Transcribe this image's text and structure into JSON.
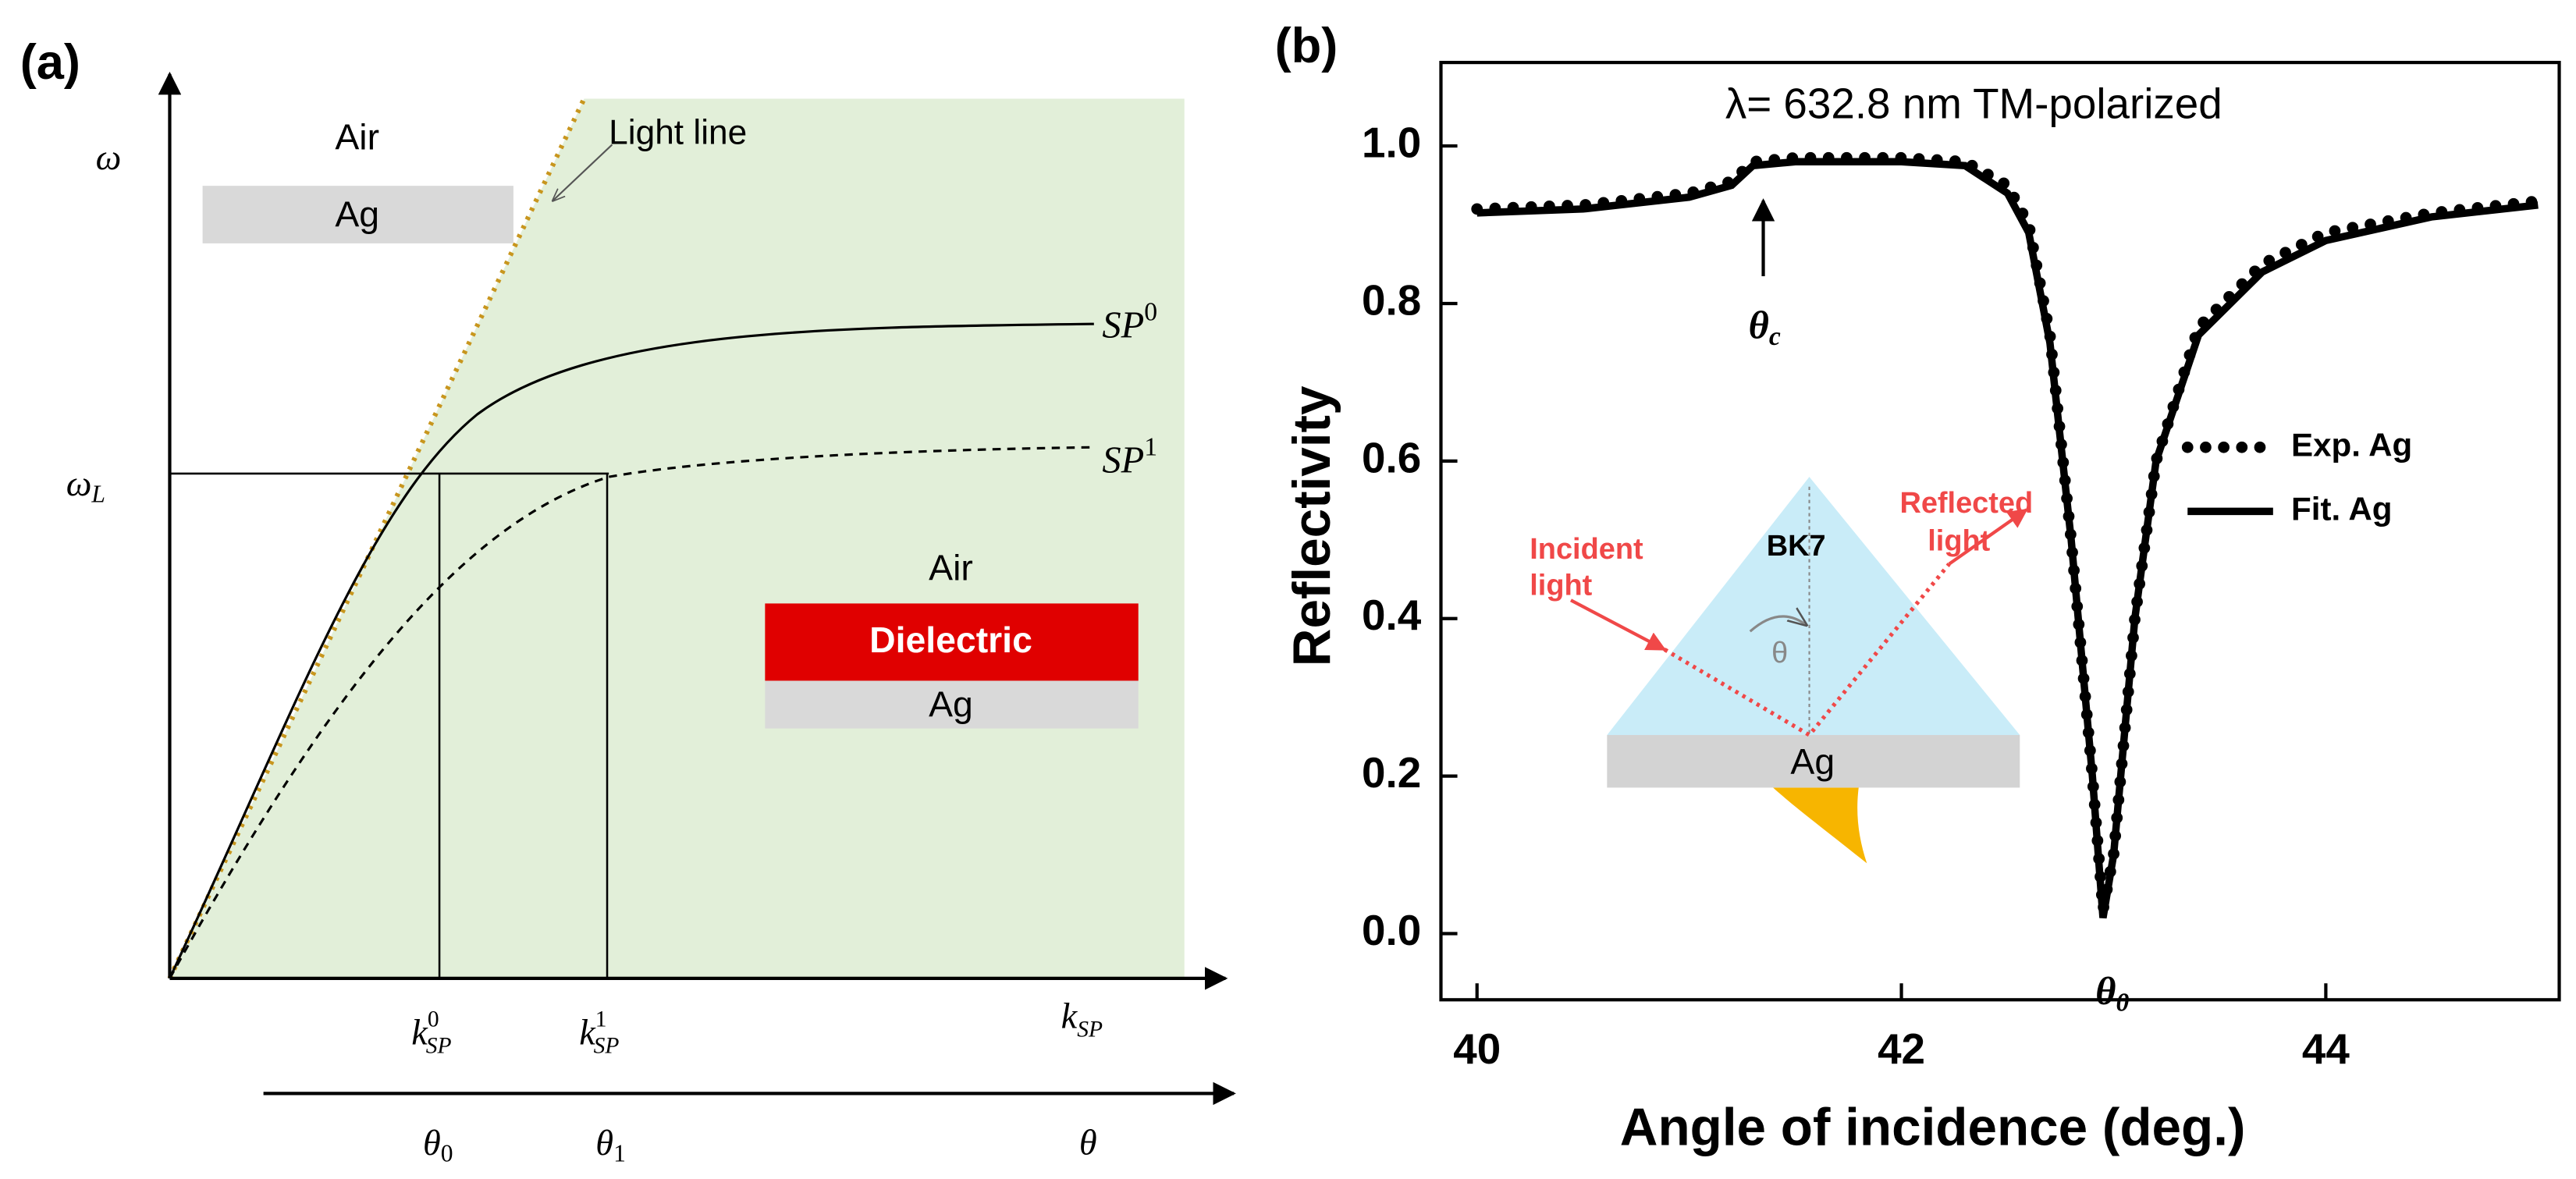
{
  "panel_a": {
    "label": "(a)",
    "y_axis": "ω",
    "top_medium": "Air",
    "top_metal": "Ag",
    "light_line": "Light line",
    "sp0": {
      "base": "SP",
      "sup": "0"
    },
    "sp1": {
      "base": "SP",
      "sup": "1"
    },
    "omega_l": {
      "base": "ω",
      "sub": "L"
    },
    "stack_top": "Air",
    "stack_middle": "Dielectric",
    "stack_bottom": "Ag",
    "k0": {
      "base": "k",
      "sub": "SP",
      "sup": "0"
    },
    "k1": {
      "base": "k",
      "sub": "SP",
      "sup": "1"
    },
    "k_axis": {
      "base": "k",
      "sub": "SP"
    },
    "theta0": {
      "base": "θ",
      "sub": "0"
    },
    "theta1": {
      "base": "θ",
      "sub": "1"
    },
    "theta_axis": "θ"
  },
  "chart_data": {
    "type": "line",
    "panel_label": "(b)",
    "title": "λ= 632.8 nm TM-polarized",
    "x_label": "Angle of incidence (deg.)",
    "y_label": "Reflectivity",
    "x": [
      40,
      40.5,
      41,
      41.2,
      41.3,
      41.5,
      42,
      42.3,
      42.5,
      42.6,
      42.7,
      42.8,
      42.9,
      42.95,
      43,
      43.1,
      43.2,
      43.4,
      43.7,
      44,
      44.5,
      45
    ],
    "series": [
      {
        "name": "Exp. Ag",
        "color": "#000000",
        "style": "dotted",
        "values": [
          0.92,
          0.925,
          0.94,
          0.955,
          0.98,
          0.985,
          0.985,
          0.98,
          0.95,
          0.9,
          0.76,
          0.5,
          0.2,
          0.03,
          0.1,
          0.4,
          0.6,
          0.77,
          0.85,
          0.89,
          0.915,
          0.93
        ]
      },
      {
        "name": "Fit. Ag",
        "color": "#000000",
        "style": "solid",
        "values": [
          0.915,
          0.92,
          0.935,
          0.95,
          0.975,
          0.98,
          0.98,
          0.975,
          0.94,
          0.89,
          0.75,
          0.5,
          0.2,
          0.02,
          0.1,
          0.4,
          0.6,
          0.76,
          0.84,
          0.88,
          0.91,
          0.925
        ]
      }
    ],
    "xlim": [
      39.83,
      45.1
    ],
    "ylim": [
      -0.084,
      1.106
    ],
    "xticks": [
      40,
      42,
      44
    ],
    "yticks": [
      {
        "value": 0,
        "label": "0.0"
      },
      0.2,
      0.4,
      0.6,
      0.8,
      {
        "value": 1,
        "label": "1.0"
      }
    ],
    "legend": "right",
    "annotations": {
      "theta_c": {
        "base": "θ",
        "sub": "c"
      },
      "theta_0": {
        "base": "θ",
        "sub": "0"
      },
      "incident": [
        "Incident",
        "light"
      ],
      "reflected": [
        "Reflected",
        "light"
      ],
      "prism": "BK7",
      "angle": "θ",
      "metal": "Ag"
    }
  }
}
